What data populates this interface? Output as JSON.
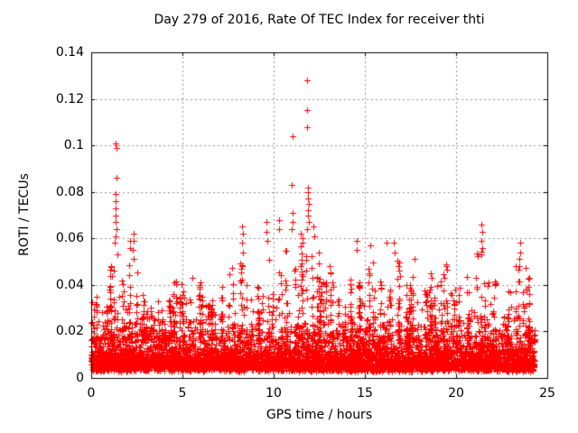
{
  "chart_data": {
    "type": "scatter",
    "title": "Day 279 of 2016, Rate Of TEC Index for receiver thti",
    "xlabel": "GPS time / hours",
    "ylabel": "ROTI / TECUs",
    "xlim": [
      0,
      25
    ],
    "ylim": [
      0,
      0.14
    ],
    "xticks": [
      0,
      5,
      10,
      15,
      20,
      25
    ],
    "xtick_labels": [
      "0",
      "5",
      "10",
      "15",
      "20",
      "25"
    ],
    "yticks": [
      0,
      0.02,
      0.04,
      0.06,
      0.08,
      0.1,
      0.12,
      0.14
    ],
    "ytick_labels": [
      "0",
      "0.02",
      "0.04",
      "0.06",
      "0.08",
      "0.1",
      "0.12",
      "0.14"
    ],
    "grid": {
      "visible": true,
      "style": "dashed",
      "color": "#8f8f8f"
    },
    "border_color": "#000000",
    "marker": {
      "symbol": "plus",
      "color": "#ff0000",
      "size": 7
    },
    "series_name": "ROTI",
    "time_span_hours": [
      0,
      24.3
    ],
    "noise_floor": 0.003,
    "band_bins": [
      [
        0.0,
        0.5,
        0.036
      ],
      [
        0.5,
        1.0,
        0.031
      ],
      [
        1.0,
        1.5,
        0.05
      ],
      [
        1.5,
        2.0,
        0.042
      ],
      [
        2.0,
        2.5,
        0.052
      ],
      [
        2.5,
        3.0,
        0.036
      ],
      [
        3.0,
        3.5,
        0.031
      ],
      [
        3.5,
        4.0,
        0.033
      ],
      [
        4.0,
        4.5,
        0.036
      ],
      [
        4.5,
        5.0,
        0.042
      ],
      [
        5.0,
        5.5,
        0.039
      ],
      [
        5.5,
        6.0,
        0.042
      ],
      [
        6.0,
        6.5,
        0.036
      ],
      [
        6.5,
        7.0,
        0.034
      ],
      [
        7.0,
        7.5,
        0.04
      ],
      [
        7.5,
        8.0,
        0.048
      ],
      [
        8.0,
        8.5,
        0.052
      ],
      [
        8.5,
        9.0,
        0.046
      ],
      [
        9.0,
        9.5,
        0.041
      ],
      [
        9.5,
        10.0,
        0.052
      ],
      [
        10.0,
        10.5,
        0.046
      ],
      [
        10.5,
        11.0,
        0.055
      ],
      [
        11.0,
        11.5,
        0.048
      ],
      [
        11.5,
        12.0,
        0.062
      ],
      [
        12.0,
        12.5,
        0.055
      ],
      [
        12.5,
        13.0,
        0.042
      ],
      [
        13.0,
        13.5,
        0.046
      ],
      [
        13.5,
        14.0,
        0.036
      ],
      [
        14.0,
        14.5,
        0.044
      ],
      [
        14.5,
        15.0,
        0.046
      ],
      [
        15.0,
        15.5,
        0.05
      ],
      [
        15.5,
        16.0,
        0.046
      ],
      [
        16.0,
        16.5,
        0.044
      ],
      [
        16.5,
        17.0,
        0.052
      ],
      [
        17.0,
        17.5,
        0.044
      ],
      [
        17.5,
        18.0,
        0.048
      ],
      [
        18.0,
        18.5,
        0.039
      ],
      [
        18.5,
        19.0,
        0.046
      ],
      [
        19.0,
        19.5,
        0.049
      ],
      [
        19.5,
        20.0,
        0.041
      ],
      [
        20.0,
        20.5,
        0.039
      ],
      [
        20.5,
        21.0,
        0.044
      ],
      [
        21.0,
        21.5,
        0.056
      ],
      [
        21.5,
        22.0,
        0.048
      ],
      [
        22.0,
        22.5,
        0.043
      ],
      [
        22.5,
        23.0,
        0.039
      ],
      [
        23.0,
        23.5,
        0.05
      ],
      [
        23.5,
        24.0,
        0.048
      ],
      [
        24.0,
        24.3,
        0.022
      ]
    ],
    "peak_points": [
      [
        1.36,
        0.101
      ],
      [
        1.38,
        0.099
      ],
      [
        1.37,
        0.086
      ],
      [
        1.33,
        0.079
      ],
      [
        1.35,
        0.076
      ],
      [
        1.36,
        0.073
      ],
      [
        1.34,
        0.07
      ],
      [
        1.35,
        0.067
      ],
      [
        1.37,
        0.064
      ],
      [
        1.33,
        0.061
      ],
      [
        1.3,
        0.058
      ],
      [
        1.42,
        0.053
      ],
      [
        1.08,
        0.048
      ],
      [
        1.12,
        0.044
      ],
      [
        2.12,
        0.059
      ],
      [
        2.14,
        0.056
      ],
      [
        2.31,
        0.062
      ],
      [
        2.33,
        0.059
      ],
      [
        2.3,
        0.055
      ],
      [
        2.35,
        0.051
      ],
      [
        5.52,
        0.043
      ],
      [
        8.28,
        0.065
      ],
      [
        8.3,
        0.062
      ],
      [
        8.26,
        0.058
      ],
      [
        8.32,
        0.054
      ],
      [
        9.62,
        0.067
      ],
      [
        9.6,
        0.063
      ],
      [
        9.65,
        0.059
      ],
      [
        10.32,
        0.068
      ],
      [
        10.3,
        0.064
      ],
      [
        11.04,
        0.104
      ],
      [
        11.0,
        0.083
      ],
      [
        11.02,
        0.071
      ],
      [
        11.05,
        0.067
      ],
      [
        10.97,
        0.064
      ],
      [
        11.83,
        0.128
      ],
      [
        11.85,
        0.115
      ],
      [
        11.84,
        0.108
      ],
      [
        11.88,
        0.082
      ],
      [
        11.9,
        0.08
      ],
      [
        11.87,
        0.077
      ],
      [
        11.92,
        0.075
      ],
      [
        11.86,
        0.072
      ],
      [
        11.89,
        0.07
      ],
      [
        11.91,
        0.067
      ],
      [
        11.85,
        0.064
      ],
      [
        12.2,
        0.065
      ],
      [
        12.22,
        0.061
      ],
      [
        13.05,
        0.048
      ],
      [
        14.55,
        0.059
      ],
      [
        14.57,
        0.055
      ],
      [
        15.3,
        0.057
      ],
      [
        16.2,
        0.058
      ],
      [
        16.6,
        0.058
      ],
      [
        16.63,
        0.054
      ],
      [
        17.7,
        0.051
      ],
      [
        19.45,
        0.048
      ],
      [
        21.4,
        0.066
      ],
      [
        21.42,
        0.063
      ],
      [
        21.38,
        0.059
      ],
      [
        21.44,
        0.056
      ],
      [
        21.41,
        0.053
      ],
      [
        23.5,
        0.058
      ],
      [
        23.52,
        0.054
      ],
      [
        23.48,
        0.051
      ]
    ],
    "render": {
      "seed": 11,
      "points_per_bin": 115
    }
  }
}
